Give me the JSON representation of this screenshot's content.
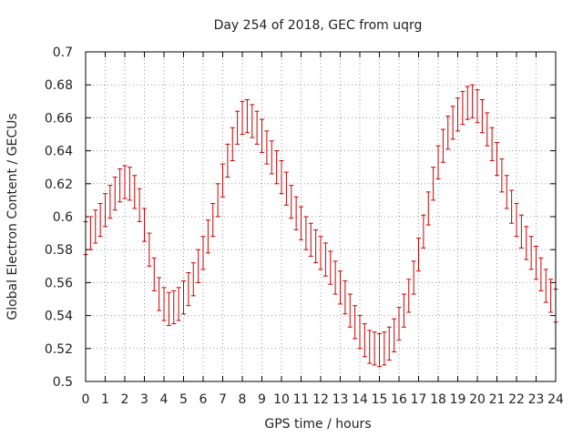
{
  "chart_data": {
    "type": "scatter",
    "title": "Day 254 of 2018, GEC from uqrg",
    "xlabel": "GPS time / hours",
    "ylabel": "Global Electron Content / GECUs",
    "xlim": [
      0,
      24
    ],
    "ylim": [
      0.5,
      0.7
    ],
    "x_ticks": [
      "0",
      "1",
      "2",
      "3",
      "4",
      "5",
      "6",
      "7",
      "8",
      "9",
      "10",
      "11",
      "12",
      "13",
      "14",
      "15",
      "16",
      "17",
      "18",
      "19",
      "20",
      "21",
      "22",
      "23",
      "24"
    ],
    "y_ticks": [
      "0.5",
      "0.52",
      "0.54",
      "0.56",
      "0.58",
      "0.6",
      "0.62",
      "0.64",
      "0.66",
      "0.68",
      "0.7"
    ],
    "grid": true,
    "error_bar_halfwidth": 0.01,
    "color": "#cc0000",
    "series": [
      {
        "x": [
          0,
          0.25,
          0.5,
          0.75,
          1,
          1.25,
          1.5,
          1.75,
          2,
          2.25,
          2.5,
          2.75,
          3,
          3.25,
          3.5,
          3.75,
          4,
          4.25,
          4.5,
          4.75,
          5,
          5.25,
          5.5,
          5.75,
          6,
          6.25,
          6.5,
          6.75,
          7,
          7.25,
          7.5,
          7.75,
          8,
          8.25,
          8.5,
          8.75,
          9,
          9.25,
          9.5,
          9.75,
          10,
          10.25,
          10.5,
          10.75,
          11,
          11.25,
          11.5,
          11.75,
          12,
          12.25,
          12.5,
          12.75,
          13,
          13.25,
          13.5,
          13.75,
          14,
          14.25,
          14.5,
          14.75,
          15,
          15.25,
          15.5,
          15.75,
          16,
          16.25,
          16.5,
          16.75,
          17,
          17.25,
          17.5,
          17.75,
          18,
          18.25,
          18.5,
          18.75,
          19,
          19.25,
          19.5,
          19.75,
          20,
          20.25,
          20.5,
          20.75,
          21,
          21.25,
          21.5,
          21.75,
          22,
          22.25,
          22.5,
          22.75,
          23,
          23.25,
          23.5,
          23.75,
          24
        ],
        "y": [
          0.587,
          0.59,
          0.594,
          0.598,
          0.604,
          0.609,
          0.614,
          0.619,
          0.621,
          0.62,
          0.615,
          0.607,
          0.595,
          0.58,
          0.565,
          0.553,
          0.547,
          0.544,
          0.545,
          0.547,
          0.551,
          0.556,
          0.562,
          0.57,
          0.578,
          0.588,
          0.598,
          0.61,
          0.622,
          0.634,
          0.644,
          0.654,
          0.66,
          0.661,
          0.658,
          0.654,
          0.649,
          0.642,
          0.636,
          0.63,
          0.624,
          0.617,
          0.609,
          0.602,
          0.596,
          0.59,
          0.586,
          0.582,
          0.578,
          0.574,
          0.569,
          0.563,
          0.557,
          0.551,
          0.543,
          0.536,
          0.53,
          0.525,
          0.521,
          0.52,
          0.519,
          0.52,
          0.523,
          0.528,
          0.535,
          0.543,
          0.552,
          0.563,
          0.577,
          0.591,
          0.605,
          0.62,
          0.633,
          0.643,
          0.651,
          0.657,
          0.662,
          0.666,
          0.669,
          0.67,
          0.667,
          0.661,
          0.653,
          0.644,
          0.635,
          0.625,
          0.615,
          0.606,
          0.598,
          0.591,
          0.584,
          0.578,
          0.572,
          0.565,
          0.558,
          0.552,
          0.546
        ]
      }
    ]
  }
}
